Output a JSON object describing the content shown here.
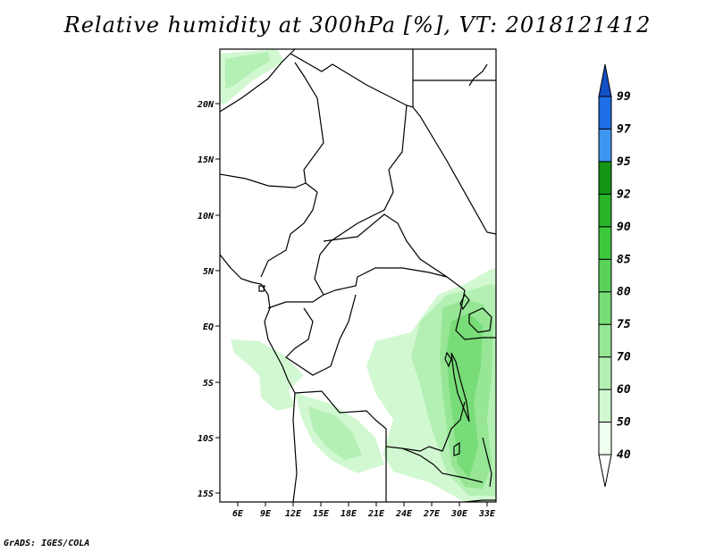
{
  "title": "Relative humidity at 300hPa [%], VT: 2018121412",
  "footer": "GrADS: IGES/COLA",
  "map": {
    "lon_labels": [
      "6E",
      "9E",
      "12E",
      "15E",
      "18E",
      "21E",
      "24E",
      "27E",
      "30E",
      "33E"
    ],
    "lat_labels": [
      "20N",
      "15N",
      "10N",
      "5N",
      "EQ",
      "5S",
      "10S",
      "15S"
    ]
  },
  "colorbar": {
    "levels": [
      "40",
      "50",
      "60",
      "70",
      "75",
      "80",
      "85",
      "90",
      "92",
      "95",
      "97",
      "99"
    ],
    "colors": [
      "#f0fff0",
      "#d2f8d2",
      "#b4f0b4",
      "#96e696",
      "#78dc78",
      "#5ad25a",
      "#3cc83c",
      "#28b428",
      "#149614",
      "#3c96f0",
      "#1e6ee6",
      "#1450c8"
    ],
    "low_color": "#ffffff",
    "high_color": "#1450c8"
  }
}
